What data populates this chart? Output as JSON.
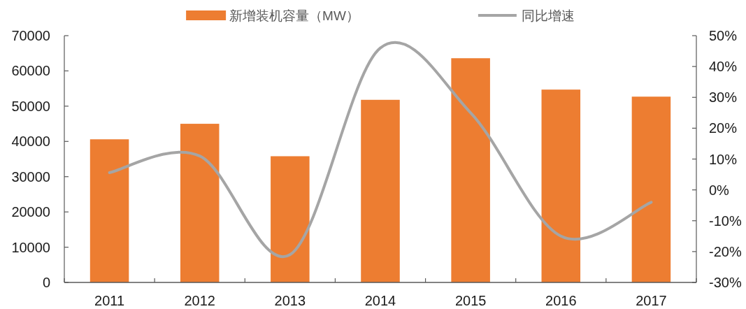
{
  "chart_data": {
    "type": "bar",
    "categories": [
      "2011",
      "2012",
      "2013",
      "2014",
      "2015",
      "2016",
      "2017"
    ],
    "series": [
      {
        "name": "新增装机容量（MW）",
        "color": "#ed7d31",
        "values": [
          40600,
          45000,
          35800,
          51800,
          63600,
          54700,
          52700
        ]
      },
      {
        "name": "同比增速",
        "type": "line",
        "axis": "y2",
        "color": "#a5a5a5",
        "values": [
          5.6,
          11,
          -21,
          46,
          25,
          -15,
          -4
        ]
      }
    ],
    "ylim": [
      0,
      70000
    ],
    "yticks": [
      0,
      10000,
      20000,
      30000,
      40000,
      50000,
      60000,
      70000
    ],
    "y2lim": [
      -30,
      50
    ],
    "y2ticks": [
      {
        "value": -30,
        "label": "-30%"
      },
      {
        "value": -20,
        "label": "-20%"
      },
      {
        "value": -10,
        "label": "-10%"
      },
      {
        "value": 0,
        "label": "0%"
      },
      {
        "value": 10,
        "label": "10%"
      },
      {
        "value": 20,
        "label": "20%"
      },
      {
        "value": 30,
        "label": "30%"
      },
      {
        "value": 40,
        "label": "40%"
      },
      {
        "value": 50,
        "label": "50%"
      }
    ],
    "legend": "top"
  }
}
